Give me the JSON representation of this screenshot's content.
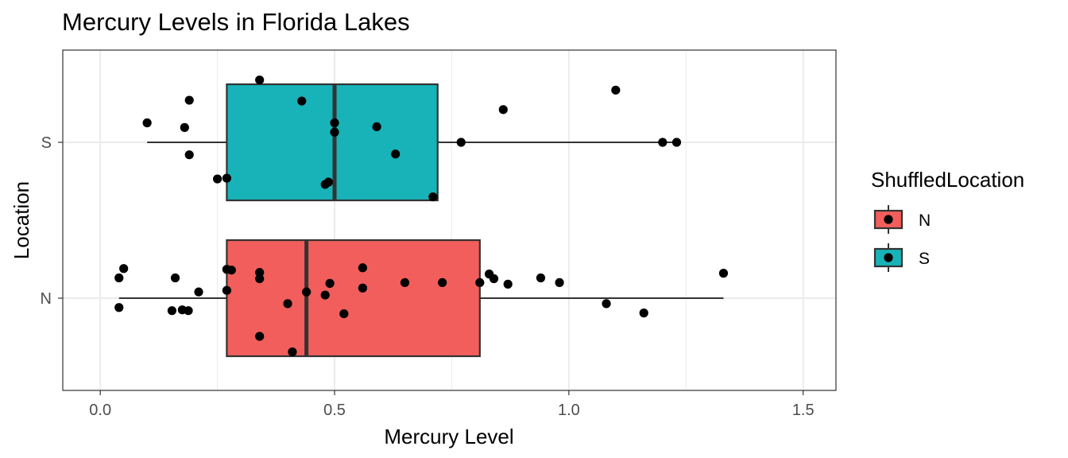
{
  "chart_data": {
    "type": "boxplot",
    "title": "Mercury Levels in Florida Lakes",
    "xlabel": "Mercury Level",
    "ylabel": "Location",
    "xlim": [
      -0.08,
      1.57
    ],
    "x_ticks": [
      "0.0",
      "0.5",
      "1.0",
      "1.5"
    ],
    "x_tick_values": [
      0.0,
      0.5,
      1.0,
      1.5
    ],
    "grid": true,
    "legend": {
      "title": "ShuffledLocation",
      "placement": "right",
      "entries": [
        {
          "label": "N",
          "color": "#f15e5b"
        },
        {
          "label": "S",
          "color": "#17b3b8"
        }
      ]
    },
    "categories": [
      "N",
      "S"
    ],
    "series": [
      {
        "category": "N",
        "fill": "#f15e5b",
        "whisker_low": 0.04,
        "q1": 0.27,
        "median": 0.44,
        "q3": 0.81,
        "whisker_high": 1.33,
        "points": [
          {
            "x": 0.05,
            "jitter": 0.19
          },
          {
            "x": 0.04,
            "jitter": 0.13
          },
          {
            "x": 0.16,
            "jitter": 0.13
          },
          {
            "x": 0.21,
            "jitter": 0.04
          },
          {
            "x": 0.04,
            "jitter": -0.06
          },
          {
            "x": 0.153,
            "jitter": -0.08
          },
          {
            "x": 0.175,
            "jitter": -0.075
          },
          {
            "x": 0.188,
            "jitter": -0.08
          },
          {
            "x": 0.27,
            "jitter": 0.185
          },
          {
            "x": 0.28,
            "jitter": 0.18
          },
          {
            "x": 0.27,
            "jitter": 0.05
          },
          {
            "x": 0.34,
            "jitter": 0.165
          },
          {
            "x": 0.34,
            "jitter": 0.125
          },
          {
            "x": 0.34,
            "jitter": -0.245
          },
          {
            "x": 0.4,
            "jitter": -0.035
          },
          {
            "x": 0.41,
            "jitter": -0.345
          },
          {
            "x": 0.44,
            "jitter": 0.04
          },
          {
            "x": 0.48,
            "jitter": 0.02
          },
          {
            "x": 0.49,
            "jitter": 0.095
          },
          {
            "x": 0.52,
            "jitter": -0.1
          },
          {
            "x": 0.56,
            "jitter": 0.195
          },
          {
            "x": 0.56,
            "jitter": 0.065
          },
          {
            "x": 0.65,
            "jitter": 0.1
          },
          {
            "x": 0.73,
            "jitter": 0.1
          },
          {
            "x": 0.81,
            "jitter": 0.1
          },
          {
            "x": 0.83,
            "jitter": 0.155
          },
          {
            "x": 0.84,
            "jitter": 0.125
          },
          {
            "x": 0.87,
            "jitter": 0.09
          },
          {
            "x": 0.94,
            "jitter": 0.13
          },
          {
            "x": 0.98,
            "jitter": 0.1
          },
          {
            "x": 1.08,
            "jitter": -0.035
          },
          {
            "x": 1.16,
            "jitter": -0.095
          },
          {
            "x": 1.33,
            "jitter": 0.16
          }
        ]
      },
      {
        "category": "S",
        "fill": "#17b3b8",
        "whisker_low": 0.1,
        "q1": 0.27,
        "median": 0.5,
        "q3": 0.72,
        "whisker_high": 1.23,
        "points": [
          {
            "x": 0.1,
            "jitter": 0.125
          },
          {
            "x": 0.19,
            "jitter": 0.27
          },
          {
            "x": 0.18,
            "jitter": 0.095
          },
          {
            "x": 0.19,
            "jitter": -0.08
          },
          {
            "x": 0.25,
            "jitter": -0.235
          },
          {
            "x": 0.27,
            "jitter": -0.23
          },
          {
            "x": 0.34,
            "jitter": 0.4
          },
          {
            "x": 0.43,
            "jitter": 0.265
          },
          {
            "x": 0.48,
            "jitter": -0.27
          },
          {
            "x": 0.487,
            "jitter": -0.255
          },
          {
            "x": 0.5,
            "jitter": 0.125
          },
          {
            "x": 0.5,
            "jitter": 0.065
          },
          {
            "x": 0.59,
            "jitter": 0.1
          },
          {
            "x": 0.63,
            "jitter": -0.075
          },
          {
            "x": 0.71,
            "jitter": -0.35
          },
          {
            "x": 0.77,
            "jitter": 0.0
          },
          {
            "x": 0.86,
            "jitter": 0.21
          },
          {
            "x": 1.1,
            "jitter": 0.335
          },
          {
            "x": 1.2,
            "jitter": 0.0
          },
          {
            "x": 1.23,
            "jitter": 0.0
          }
        ]
      }
    ]
  },
  "colors": {
    "grid": "#ebebeb",
    "panel_border": "#333333",
    "box_stroke": "#333333",
    "point": "#000000",
    "tick_text": "#4d4d4d"
  }
}
